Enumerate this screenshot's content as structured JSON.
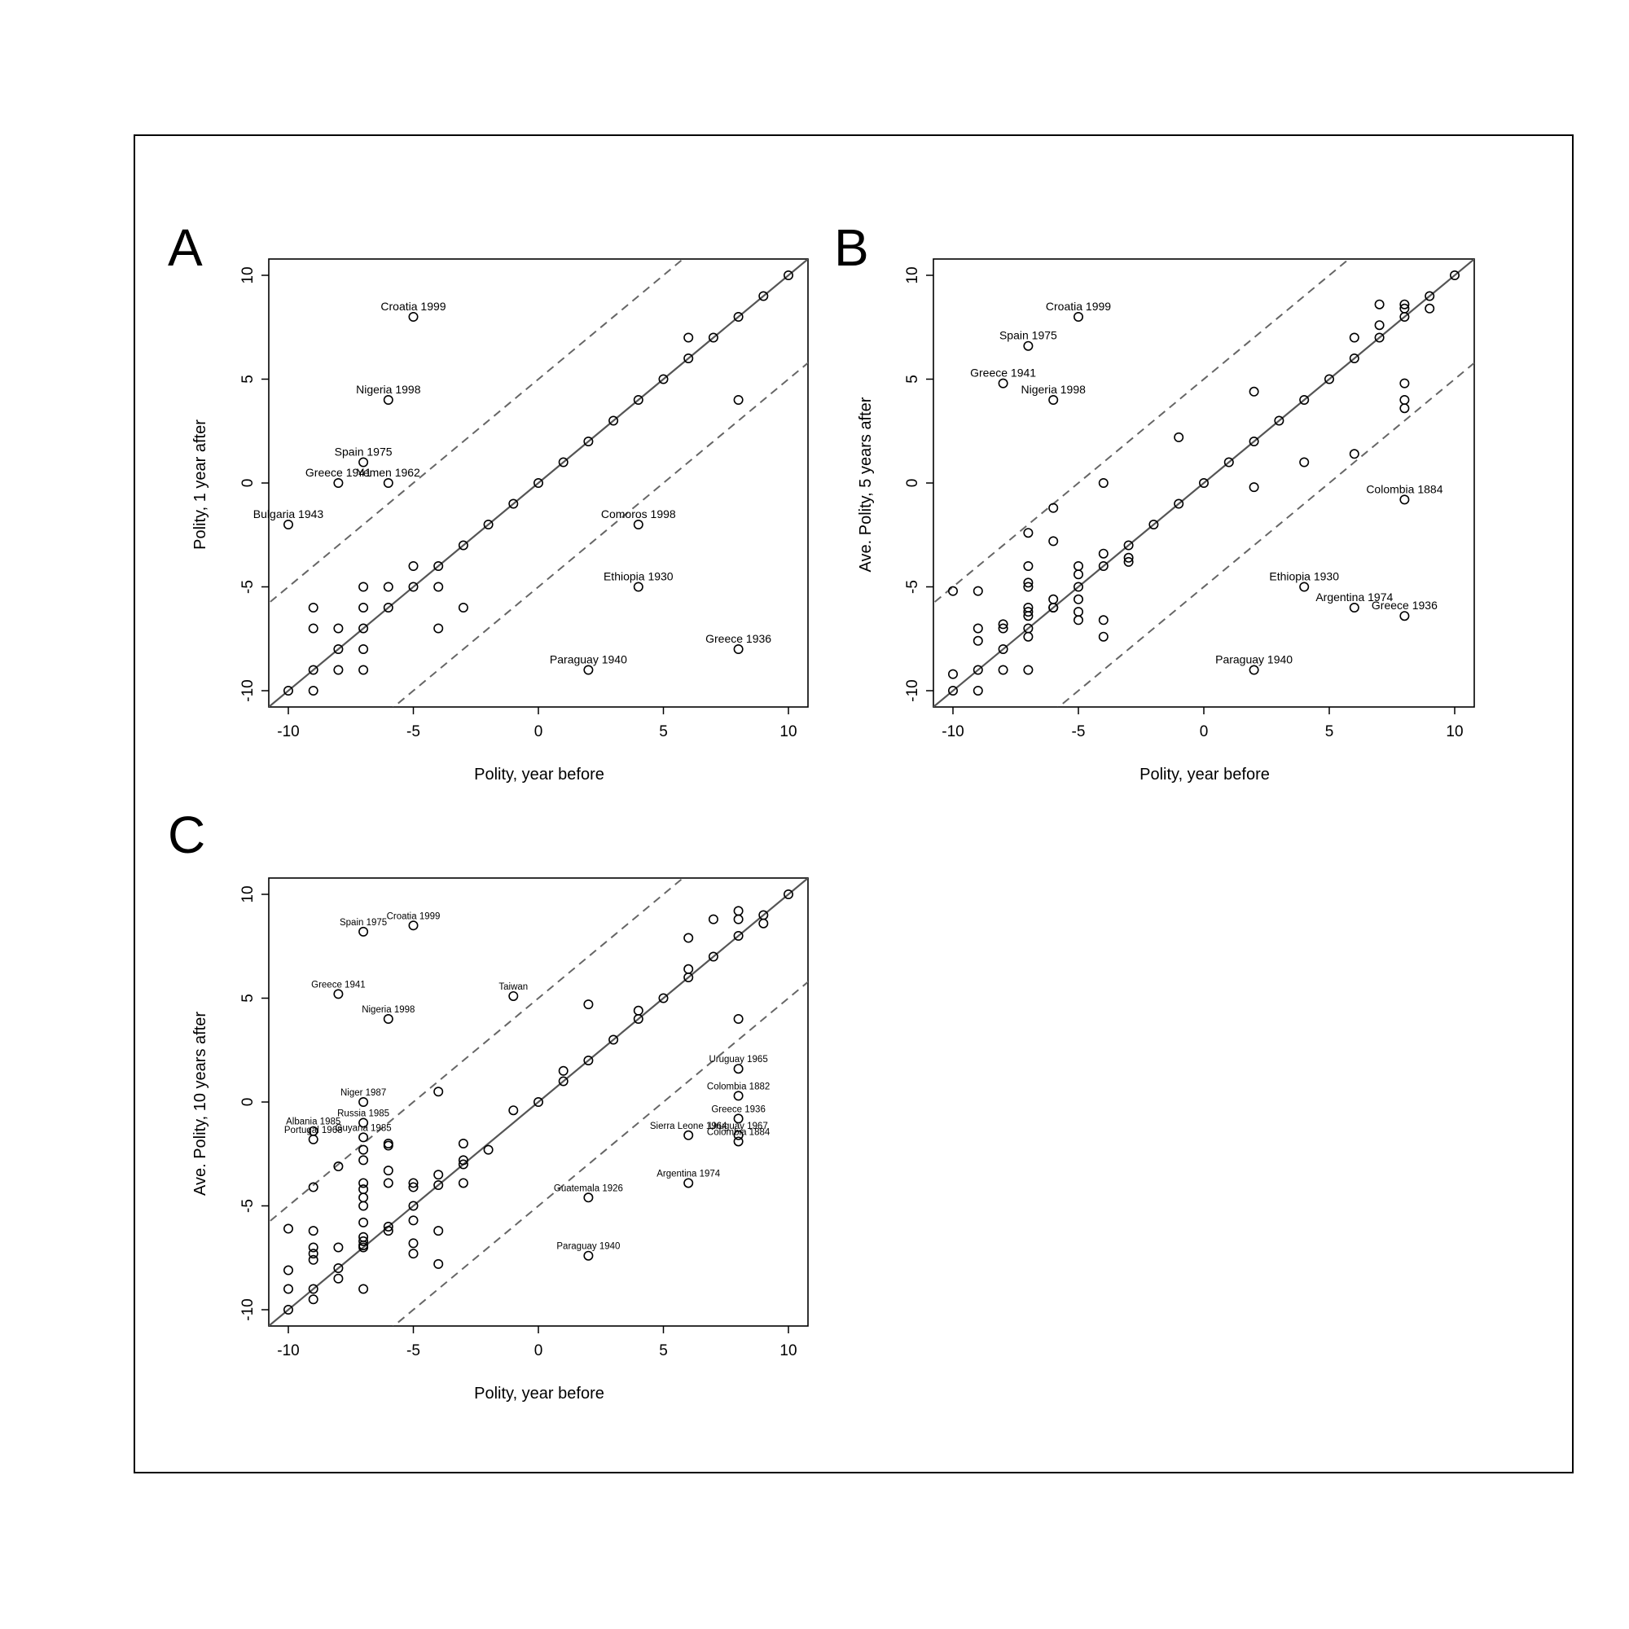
{
  "chart_data": [
    {
      "type": "scatter",
      "panel_label": "A",
      "xlabel": "Polity, year before",
      "ylabel": "Polity, 1 year after",
      "xlim": [
        -10,
        10
      ],
      "ylim": [
        -10,
        10
      ],
      "xticks": [
        "-10",
        "-5",
        "0",
        "5",
        "10"
      ],
      "yticks": [
        "-10",
        "-5",
        "0",
        "5",
        "10"
      ],
      "reference_lines": [
        "identity y = x (solid)",
        "y = x + 5 (dashed)",
        "y = x - 5 (dashed)"
      ],
      "points": [
        [
          -10,
          -10
        ],
        [
          -9,
          -9
        ],
        [
          -8,
          -8
        ],
        [
          -7,
          -7
        ],
        [
          -6,
          -6
        ],
        [
          -5,
          -5
        ],
        [
          -4,
          -4
        ],
        [
          -3,
          -3
        ],
        [
          -2,
          -2
        ],
        [
          -1,
          -1
        ],
        [
          0,
          0
        ],
        [
          1,
          1
        ],
        [
          2,
          2
        ],
        [
          3,
          3
        ],
        [
          4,
          4
        ],
        [
          5,
          5
        ],
        [
          6,
          6
        ],
        [
          7,
          7
        ],
        [
          8,
          8
        ],
        [
          9,
          9
        ],
        [
          10,
          10
        ],
        [
          -9,
          -6
        ],
        [
          -9,
          -7
        ],
        [
          -9,
          -10
        ],
        [
          -8,
          -7
        ],
        [
          -8,
          -9
        ],
        [
          -7,
          -5
        ],
        [
          -7,
          -6
        ],
        [
          -7,
          -8
        ],
        [
          -7,
          -9
        ],
        [
          -6,
          -5
        ],
        [
          -5,
          -4
        ],
        [
          -4,
          -5
        ],
        [
          -4,
          -7
        ],
        [
          -3,
          -6
        ],
        [
          6,
          7
        ],
        [
          8,
          4
        ],
        [
          -5,
          8
        ],
        [
          -6,
          4
        ],
        [
          -7,
          1
        ],
        [
          -8,
          0
        ],
        [
          -6,
          0
        ],
        [
          -10,
          -2
        ],
        [
          4,
          -2
        ],
        [
          4,
          -5
        ],
        [
          2,
          -9
        ],
        [
          8,
          -8
        ]
      ],
      "annotations": [
        {
          "text": "Croatia 1999",
          "x": -5,
          "y": 8
        },
        {
          "text": "Nigeria 1998",
          "x": -6,
          "y": 4
        },
        {
          "text": "Spain 1975",
          "x": -7,
          "y": 1
        },
        {
          "text": "Greece 1941",
          "x": -8,
          "y": 0
        },
        {
          "text": "Yemen 1962",
          "x": -6,
          "y": 0
        },
        {
          "text": "Bulgaria 1943",
          "x": -10,
          "y": -2
        },
        {
          "text": "Comoros 1998",
          "x": 4,
          "y": -2
        },
        {
          "text": "Ethiopia 1930",
          "x": 4,
          "y": -5
        },
        {
          "text": "Paraguay 1940",
          "x": 2,
          "y": -9
        },
        {
          "text": "Greece 1936",
          "x": 8,
          "y": -8
        }
      ]
    },
    {
      "type": "scatter",
      "panel_label": "B",
      "xlabel": "Polity, year before",
      "ylabel": "Ave. Polity, 5 years after",
      "xlim": [
        -10,
        10
      ],
      "ylim": [
        -10,
        10
      ],
      "xticks": [
        "-10",
        "-5",
        "0",
        "5",
        "10"
      ],
      "yticks": [
        "-10",
        "-5",
        "0",
        "5",
        "10"
      ],
      "reference_lines": [
        "identity y = x (solid)",
        "y = x + 5 (dashed)",
        "y = x - 5 (dashed)"
      ],
      "points": [
        [
          -10,
          -10
        ],
        [
          -9,
          -9
        ],
        [
          -8,
          -8
        ],
        [
          -7,
          -7
        ],
        [
          -6,
          -6
        ],
        [
          -5,
          -5
        ],
        [
          -4,
          -4
        ],
        [
          -3,
          -3
        ],
        [
          -2,
          -2
        ],
        [
          -1,
          -1
        ],
        [
          0,
          0
        ],
        [
          1,
          1
        ],
        [
          2,
          2
        ],
        [
          3,
          3
        ],
        [
          4,
          4
        ],
        [
          5,
          5
        ],
        [
          6,
          6
        ],
        [
          7,
          7
        ],
        [
          8,
          8
        ],
        [
          9,
          9
        ],
        [
          10,
          10
        ],
        [
          -10,
          -5.2
        ],
        [
          -10,
          -9.2
        ],
        [
          -9,
          -5.2
        ],
        [
          -9,
          -7
        ],
        [
          -9,
          -7.6
        ],
        [
          -9,
          -10
        ],
        [
          -8,
          -6.8
        ],
        [
          -8,
          -7
        ],
        [
          -8,
          -9
        ],
        [
          -7,
          -2.4
        ],
        [
          -7,
          -4
        ],
        [
          -7,
          -4.8
        ],
        [
          -7,
          -5
        ],
        [
          -7,
          -6
        ],
        [
          -7,
          -6.2
        ],
        [
          -7,
          -6.4
        ],
        [
          -7,
          -7.4
        ],
        [
          -7,
          -9
        ],
        [
          -6,
          -1.2
        ],
        [
          -6,
          -2.8
        ],
        [
          -6,
          -5.6
        ],
        [
          -6,
          -6
        ],
        [
          -5,
          -4
        ],
        [
          -5,
          -4.4
        ],
        [
          -5,
          -5.6
        ],
        [
          -5,
          -6.2
        ],
        [
          -5,
          -6.6
        ],
        [
          -4,
          0
        ],
        [
          -4,
          -3.4
        ],
        [
          -4,
          -6.6
        ],
        [
          -4,
          -7.4
        ],
        [
          -3,
          -3.6
        ],
        [
          -3,
          -3.8
        ],
        [
          -1,
          2.2
        ],
        [
          2,
          4.4
        ],
        [
          2,
          -0.2
        ],
        [
          4,
          1
        ],
        [
          6,
          7
        ],
        [
          6,
          1.4
        ],
        [
          7,
          8.6
        ],
        [
          7,
          7.6
        ],
        [
          8,
          8.6
        ],
        [
          8,
          8.4
        ],
        [
          8,
          4.8
        ],
        [
          8,
          4
        ],
        [
          8,
          3.6
        ],
        [
          9,
          8.4
        ],
        [
          -5,
          8
        ],
        [
          -7,
          6.6
        ],
        [
          -8,
          4.8
        ],
        [
          -6,
          4
        ],
        [
          8,
          -0.8
        ],
        [
          4,
          -5
        ],
        [
          6,
          -6
        ],
        [
          8,
          -6.4
        ],
        [
          2,
          -9
        ]
      ],
      "annotations": [
        {
          "text": "Croatia 1999",
          "x": -5,
          "y": 8
        },
        {
          "text": "Spain 1975",
          "x": -7,
          "y": 6.6
        },
        {
          "text": "Greece 1941",
          "x": -8,
          "y": 4.8
        },
        {
          "text": "Nigeria 1998",
          "x": -6,
          "y": 4
        },
        {
          "text": "Colombia 1884",
          "x": 8,
          "y": -0.8
        },
        {
          "text": "Ethiopia 1930",
          "x": 4,
          "y": -5
        },
        {
          "text": "Argentina 1974",
          "x": 6,
          "y": -6
        },
        {
          "text": "Greece 1936",
          "x": 8,
          "y": -6.4
        },
        {
          "text": "Paraguay 1940",
          "x": 2,
          "y": -9
        }
      ]
    },
    {
      "type": "scatter",
      "panel_label": "C",
      "xlabel": "Polity, year before",
      "ylabel": "Ave. Polity, 10 years after",
      "xlim": [
        -10,
        10
      ],
      "ylim": [
        -10,
        10
      ],
      "xticks": [
        "-10",
        "-5",
        "0",
        "5",
        "10"
      ],
      "yticks": [
        "-10",
        "-5",
        "0",
        "5",
        "10"
      ],
      "reference_lines": [
        "identity y = x (solid)",
        "y = x + 5 (dashed)",
        "y = x - 5 (dashed)"
      ],
      "points": [
        [
          -10,
          -10
        ],
        [
          -9,
          -9
        ],
        [
          -8,
          -8
        ],
        [
          -7,
          -7
        ],
        [
          -6,
          -6
        ],
        [
          -5,
          -5
        ],
        [
          -4,
          -4
        ],
        [
          -3,
          -3
        ],
        [
          -2,
          -2.3
        ],
        [
          -1,
          -0.4
        ],
        [
          0,
          0
        ],
        [
          1,
          1
        ],
        [
          2,
          2
        ],
        [
          3,
          3
        ],
        [
          4,
          4
        ],
        [
          5,
          5
        ],
        [
          6,
          6
        ],
        [
          7,
          7
        ],
        [
          8,
          8
        ],
        [
          9,
          9
        ],
        [
          10,
          10
        ],
        [
          -10,
          -6.1
        ],
        [
          -10,
          -8.1
        ],
        [
          -10,
          -9
        ],
        [
          -9,
          -4.1
        ],
        [
          -9,
          -6.2
        ],
        [
          -9,
          -7
        ],
        [
          -9,
          -7.3
        ],
        [
          -9,
          -7.6
        ],
        [
          -9,
          -9.5
        ],
        [
          -8,
          -3.1
        ],
        [
          -8,
          -7
        ],
        [
          -8,
          -8.5
        ],
        [
          -7,
          -2.8
        ],
        [
          -7,
          -3.9
        ],
        [
          -7,
          -4.2
        ],
        [
          -7,
          -4.6
        ],
        [
          -7,
          -5
        ],
        [
          -7,
          -5.8
        ],
        [
          -7,
          -6.5
        ],
        [
          -7,
          -6.7
        ],
        [
          -7,
          -6.9
        ],
        [
          -7,
          -9
        ],
        [
          -6,
          -2
        ],
        [
          -6,
          -2.1
        ],
        [
          -6,
          -3.3
        ],
        [
          -6,
          -3.9
        ],
        [
          -6,
          -6.2
        ],
        [
          -5,
          -3.9
        ],
        [
          -5,
          -4.1
        ],
        [
          -5,
          -5.7
        ],
        [
          -5,
          -6.8
        ],
        [
          -5,
          -7.3
        ],
        [
          -4,
          0.5
        ],
        [
          -4,
          -3.5
        ],
        [
          -4,
          -6.2
        ],
        [
          -4,
          -7.8
        ],
        [
          -3,
          -2
        ],
        [
          -3,
          -2.8
        ],
        [
          -3,
          -3.9
        ],
        [
          1,
          1.5
        ],
        [
          2,
          4.7
        ],
        [
          4,
          4.4
        ],
        [
          6,
          7.9
        ],
        [
          6,
          6.4
        ],
        [
          7,
          8.8
        ],
        [
          8,
          9.2
        ],
        [
          8,
          8.8
        ],
        [
          8,
          4
        ],
        [
          9,
          8.6
        ],
        [
          -7,
          8.2
        ],
        [
          -5,
          8.5
        ],
        [
          -8,
          5.2
        ],
        [
          -6,
          4
        ],
        [
          -1,
          5.1
        ],
        [
          -7,
          0
        ],
        [
          -7,
          -1
        ],
        [
          -9,
          -1.4
        ],
        [
          -7,
          -1.7
        ],
        [
          -9,
          -1.8
        ],
        [
          -7,
          -2.3
        ],
        [
          8,
          1.6
        ],
        [
          8,
          0.3
        ],
        [
          8,
          -0.8
        ],
        [
          8,
          -1.6
        ],
        [
          6,
          -1.6
        ],
        [
          8,
          -1.9
        ],
        [
          6,
          -3.9
        ],
        [
          2,
          -4.6
        ],
        [
          2,
          -7.4
        ]
      ],
      "annotations": [
        {
          "text": "Spain 1975",
          "x": -7,
          "y": 8.2
        },
        {
          "text": "Croatia 1999",
          "x": -5,
          "y": 8.5
        },
        {
          "text": "Greece 1941",
          "x": -8,
          "y": 5.2
        },
        {
          "text": "Nigeria 1998",
          "x": -6,
          "y": 4
        },
        {
          "text": "Taiwan",
          "x": -1,
          "y": 5.1
        },
        {
          "text": "Niger 1987",
          "x": -7,
          "y": 0
        },
        {
          "text": "Russia 1985",
          "x": -7,
          "y": -1
        },
        {
          "text": "Albania 1985",
          "x": -9,
          "y": -1.4
        },
        {
          "text": "Guyana 1985",
          "x": -7,
          "y": -1.7
        },
        {
          "text": "Portugal 1968",
          "x": -9,
          "y": -1.8
        },
        {
          "text": "Uruguay 1965",
          "x": 8,
          "y": 1.6
        },
        {
          "text": "Colombia 1882",
          "x": 8,
          "y": 0.3
        },
        {
          "text": "Greece 1936",
          "x": 8,
          "y": -0.8
        },
        {
          "text": "Uruguay 1967",
          "x": 8,
          "y": -1.6
        },
        {
          "text": "Sierra Leone 1964",
          "x": 6,
          "y": -1.6
        },
        {
          "text": "Colombia 1884",
          "x": 8,
          "y": -1.9
        },
        {
          "text": "Argentina 1974",
          "x": 6,
          "y": -3.9
        },
        {
          "text": "Guatemala 1926",
          "x": 2,
          "y": -4.6
        },
        {
          "text": "Paraguay 1940",
          "x": 2,
          "y": -7.4
        }
      ]
    }
  ]
}
